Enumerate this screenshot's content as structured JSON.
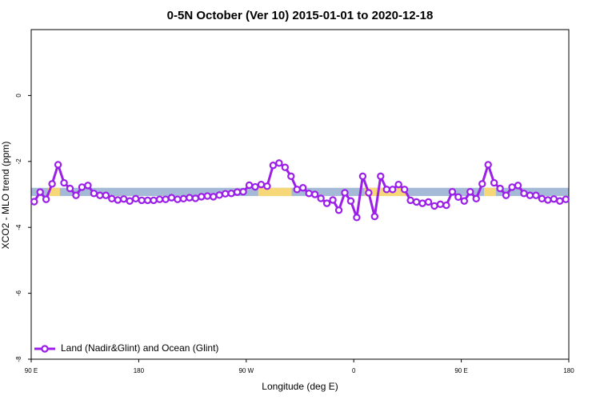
{
  "chart_data": {
    "type": "line",
    "title": "0-5N October (Ver 10)   2015-01-01 to 2020-12-18",
    "x_label": "Longitude (deg E)",
    "y_label": "XCO2 - MLO trend (ppm)",
    "xlim": [
      90,
      540
    ],
    "ylim": [
      -8,
      2
    ],
    "xticks": [
      {
        "value": 90,
        "label": "90 E"
      },
      180,
      {
        "value": 270,
        "label": "90 W"
      },
      {
        "value": 360,
        "label": "0"
      },
      {
        "value": 450,
        "label": "90 E"
      },
      {
        "value": 540,
        "label": "180"
      }
    ],
    "yticks": [
      0,
      -2,
      -4,
      -6,
      -8
    ],
    "band": {
      "y": [
        -2.8,
        -3.05
      ],
      "color": "#a5bad6",
      "segments": [
        {
          "x": [
            104,
            114
          ],
          "color": "#f7d878"
        },
        {
          "x": [
            280,
            308
          ],
          "color": "#f7d878"
        },
        {
          "x": [
            369,
            405
          ],
          "color": "#f7d878"
        },
        {
          "x": [
            469,
            479
          ],
          "color": "#f7d878"
        }
      ]
    },
    "legend": "bottom-left",
    "x": [
      92.5,
      97.5,
      102.5,
      107.5,
      112.5,
      117.5,
      122.5,
      127.5,
      132.5,
      137.5,
      142.5,
      147.5,
      152.5,
      157.5,
      162.5,
      167.5,
      172.5,
      177.5,
      182.5,
      187.5,
      192.5,
      197.5,
      202.5,
      207.5,
      212.5,
      217.5,
      222.5,
      227.5,
      232.5,
      237.5,
      242.5,
      247.5,
      252.5,
      257.5,
      262.5,
      267.5,
      272.5,
      277.5,
      282.5,
      287.5,
      292.5,
      297.5,
      302.5,
      307.5,
      312.5,
      317.5,
      322.5,
      327.5,
      332.5,
      337.5,
      342.5,
      347.5,
      352.5,
      357.5,
      362.5,
      367.5,
      372.5,
      377.5,
      382.5,
      387.5,
      392.5,
      397.5,
      402.5,
      407.5,
      412.5,
      417.5,
      422.5,
      427.5,
      432.5,
      437.5,
      442.5,
      447.5,
      452.5,
      457.5,
      462.5,
      467.5,
      472.5,
      477.5,
      482.5,
      487.5,
      492.5,
      497.5,
      502.5,
      507.5,
      512.5,
      517.5,
      522.5,
      527.5,
      532.5,
      537.5
    ],
    "series": [
      {
        "name": "Land (Nadir&Glint) and Ocean (Glint)",
        "color": "#9b1fe8",
        "values": [
          -3.22,
          -2.93,
          -3.15,
          -2.68,
          -2.1,
          -2.65,
          -2.82,
          -3.03,
          -2.78,
          -2.73,
          -2.97,
          -3.03,
          -3.03,
          -3.13,
          -3.17,
          -3.14,
          -3.2,
          -3.13,
          -3.18,
          -3.18,
          -3.18,
          -3.15,
          -3.15,
          -3.1,
          -3.15,
          -3.13,
          -3.1,
          -3.12,
          -3.07,
          -3.05,
          -3.07,
          -3.02,
          -2.98,
          -2.97,
          -2.93,
          -2.92,
          -2.72,
          -2.77,
          -2.7,
          -2.75,
          -2.12,
          -2.05,
          -2.18,
          -2.45,
          -2.85,
          -2.8,
          -2.97,
          -3.0,
          -3.12,
          -3.27,
          -3.17,
          -3.48,
          -2.95,
          -3.2,
          -3.7,
          -2.45,
          -2.95,
          -3.67,
          -2.45,
          -2.85,
          -2.85,
          -2.7,
          -2.85,
          -3.18,
          -3.23,
          -3.27,
          -3.23,
          -3.35,
          -3.3,
          -3.33,
          -2.92,
          -3.08,
          -3.2,
          -2.92,
          -3.13,
          -2.68,
          -2.1,
          -2.65,
          -2.82,
          -3.03,
          -2.78,
          -2.73,
          -2.97,
          -3.03,
          -3.03,
          -3.13,
          -3.17,
          -3.14,
          -3.2,
          -3.15
        ]
      }
    ]
  }
}
